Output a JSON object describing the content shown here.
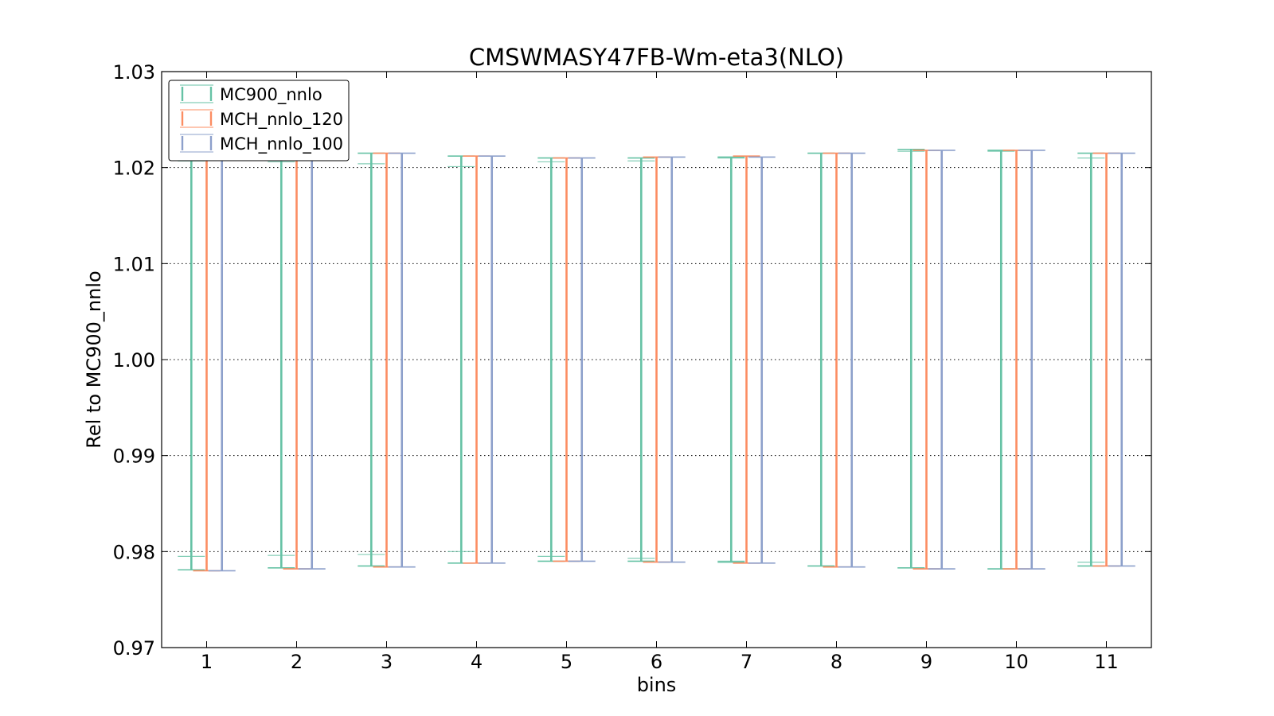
{
  "chart_data": {
    "type": "errorbar",
    "title": "CMSWMASY47FB-Wm-eta3(NLO)",
    "xlabel": "bins",
    "ylabel": "Rel to MC900_nnlo",
    "categories": [
      "1",
      "2",
      "3",
      "4",
      "5",
      "6",
      "7",
      "8",
      "9",
      "10",
      "11"
    ],
    "ylim": [
      0.97,
      1.03
    ],
    "yticks": [
      "0.97",
      "0.98",
      "0.99",
      "1.00",
      "1.01",
      "1.02",
      "1.03"
    ],
    "grid": "horizontal-dotted",
    "legend_position": "top-left",
    "series": [
      {
        "name": "MC900_nnlo",
        "color": "#66c2a5",
        "lower": [
          0.9781,
          0.9783,
          0.9785,
          0.9788,
          0.979,
          0.979,
          0.9789,
          0.9785,
          0.9783,
          0.9782,
          0.9785
        ],
        "upper": [
          1.0219,
          1.0217,
          1.0215,
          1.0212,
          1.021,
          1.021,
          1.0211,
          1.0215,
          1.0219,
          1.0218,
          1.0215
        ],
        "inner_lower": [
          0.9795,
          0.9796,
          0.9797,
          0.98,
          0.9795,
          0.9793,
          0.979,
          0.9785,
          0.9783,
          0.9782,
          0.9789
        ],
        "inner_upper": [
          1.0207,
          1.0206,
          1.0204,
          1.0201,
          1.0206,
          1.0207,
          1.021,
          1.0215,
          1.0217,
          1.0217,
          1.021
        ]
      },
      {
        "name": "MCH_nnlo_120",
        "color": "#fc8d62",
        "lower": [
          0.978,
          0.9782,
          0.9784,
          0.9788,
          0.979,
          0.9789,
          0.9788,
          0.9784,
          0.9782,
          0.9782,
          0.9785
        ],
        "upper": [
          1.0209,
          1.0208,
          1.0215,
          1.0212,
          1.021,
          1.0211,
          1.0212,
          1.0215,
          1.0218,
          1.0218,
          1.0215
        ]
      },
      {
        "name": "MCH_nnlo_100",
        "color": "#8da0cb",
        "lower": [
          0.978,
          0.9782,
          0.9784,
          0.9788,
          0.979,
          0.9789,
          0.9788,
          0.9784,
          0.9782,
          0.9782,
          0.9785
        ],
        "upper": [
          1.0209,
          1.0208,
          1.0215,
          1.0212,
          1.021,
          1.0211,
          1.0211,
          1.0215,
          1.0218,
          1.0218,
          1.0215
        ]
      }
    ]
  }
}
